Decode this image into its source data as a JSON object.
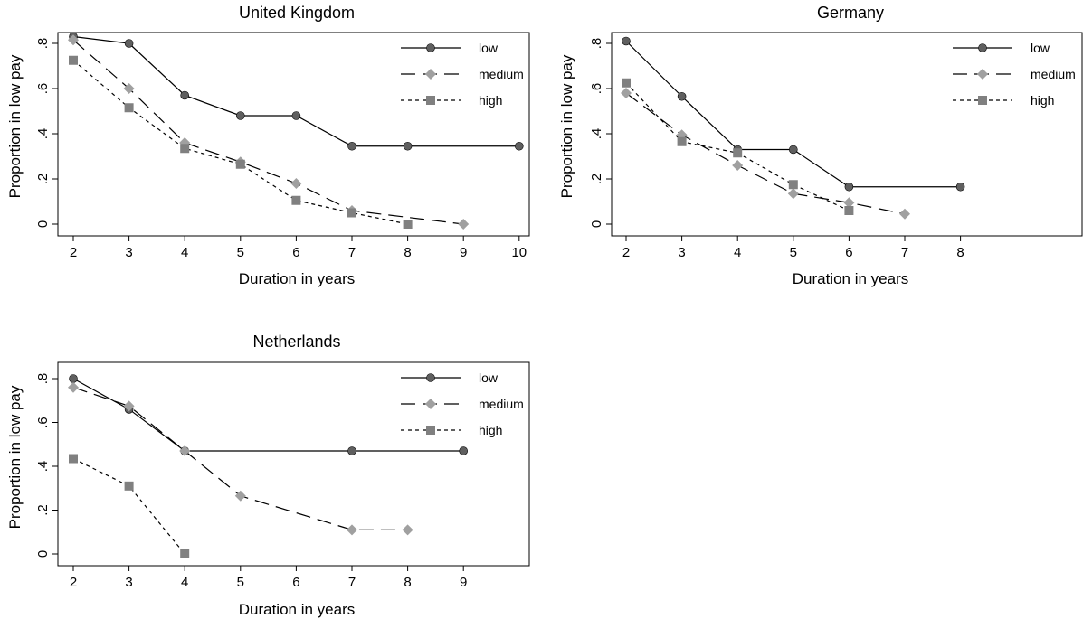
{
  "chart_data": [
    {
      "type": "line",
      "title": "United Kingdom",
      "xlabel": "Duration in years",
      "ylabel": "Proportion in low pay",
      "xlim": [
        2,
        10
      ],
      "ylim": [
        0,
        0.8
      ],
      "xticks": [
        "2",
        "3",
        "4",
        "5",
        "6",
        "7",
        "8",
        "9",
        "10"
      ],
      "yticks": [
        "0",
        ".2",
        ".4",
        ".6",
        ".8"
      ],
      "series": [
        {
          "name": "low",
          "x": [
            2,
            3,
            4,
            5,
            6,
            7,
            8,
            10
          ],
          "y": [
            0.83,
            0.8,
            0.57,
            0.48,
            0.48,
            0.345,
            0.345,
            0.345
          ]
        },
        {
          "name": "medium",
          "x": [
            2,
            3,
            4,
            5,
            6,
            7,
            9
          ],
          "y": [
            0.815,
            0.6,
            0.36,
            0.275,
            0.18,
            0.06,
            0.0
          ]
        },
        {
          "name": "high",
          "x": [
            2,
            3,
            4,
            5,
            6,
            7,
            8
          ],
          "y": [
            0.725,
            0.515,
            0.335,
            0.265,
            0.105,
            0.05,
            0.0
          ]
        }
      ]
    },
    {
      "type": "line",
      "title": "Germany",
      "xlabel": "Duration in years",
      "ylabel": "Proportion in low pay",
      "xlim": [
        2,
        10
      ],
      "ylim": [
        0,
        0.8
      ],
      "xticks": [
        "2",
        "3",
        "4",
        "5",
        "6",
        "7",
        "8"
      ],
      "yticks": [
        "0",
        ".2",
        ".4",
        ".6",
        ".8"
      ],
      "series": [
        {
          "name": "low",
          "x": [
            2,
            3,
            4,
            5,
            6,
            8
          ],
          "y": [
            0.81,
            0.565,
            0.33,
            0.33,
            0.165,
            0.165
          ]
        },
        {
          "name": "medium",
          "x": [
            2,
            3,
            4,
            5,
            6,
            7
          ],
          "y": [
            0.58,
            0.395,
            0.26,
            0.135,
            0.095,
            0.045
          ]
        },
        {
          "name": "high",
          "x": [
            2,
            3,
            4,
            5,
            6
          ],
          "y": [
            0.625,
            0.365,
            0.315,
            0.175,
            0.06
          ]
        }
      ]
    },
    {
      "type": "line",
      "title": "Netherlands",
      "xlabel": "Duration in years",
      "ylabel": "Proportion in low pay",
      "xlim": [
        2,
        10
      ],
      "ylim": [
        0,
        0.8
      ],
      "xticks": [
        "2",
        "3",
        "4",
        "5",
        "6",
        "7",
        "8",
        "9"
      ],
      "yticks": [
        "0",
        ".2",
        ".4",
        ".6",
        ".8"
      ],
      "series": [
        {
          "name": "low",
          "x": [
            2,
            3,
            4,
            7,
            9
          ],
          "y": [
            0.8,
            0.66,
            0.47,
            0.47,
            0.47
          ]
        },
        {
          "name": "medium",
          "x": [
            2,
            3,
            4,
            5,
            7,
            8
          ],
          "y": [
            0.76,
            0.675,
            0.47,
            0.265,
            0.11,
            0.11
          ]
        },
        {
          "name": "high",
          "x": [
            2,
            3,
            4
          ],
          "y": [
            0.435,
            0.31,
            0.0
          ]
        }
      ]
    }
  ],
  "legend_placement": "top-right",
  "series_styles": {
    "low": {
      "marker": "circle",
      "line": "solid",
      "color": "#000000",
      "marker_color": "#5f5f5f"
    },
    "medium": {
      "marker": "diamond",
      "line": "dashed",
      "color": "#000000",
      "marker_color": "#a0a0a0"
    },
    "high": {
      "marker": "square",
      "line": "dotted",
      "color": "#000000",
      "marker_color": "#808080"
    }
  }
}
